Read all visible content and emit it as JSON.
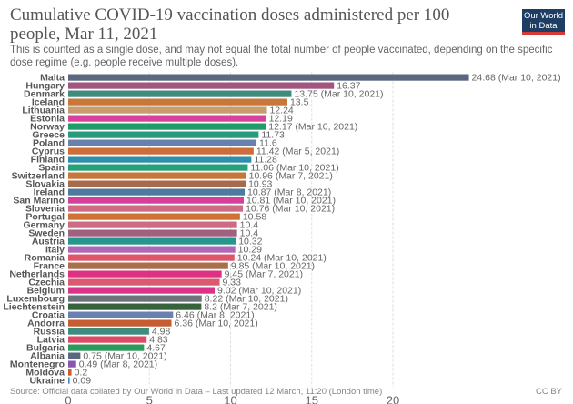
{
  "header": {
    "title": "Cumulative COVID-19 vaccination doses administered per 100 people, Mar 11, 2021",
    "subtitle": "This is counted as a single dose, and may not equal the total number of people vaccinated, depending on the specific dose regime (e.g. people receive multiple doses).",
    "logo_line1": "Our World",
    "logo_line2": "in Data"
  },
  "footer": {
    "source": "Source: Official data collated by Our World in Data – Last updated 12 March, 11:20 (London time)",
    "license": "CC BY"
  },
  "chart_data": {
    "type": "bar",
    "orientation": "horizontal",
    "title": "Cumulative COVID-19 vaccination doses administered per 100 people, Mar 11, 2021",
    "xlabel": "",
    "ylabel": "",
    "xlim": [
      0,
      25
    ],
    "xticks": [
      0,
      5,
      10,
      15,
      20
    ],
    "grid": true,
    "categories": [
      "Malta",
      "Hungary",
      "Denmark",
      "Iceland",
      "Lithuania",
      "Estonia",
      "Norway",
      "Greece",
      "Poland",
      "Cyprus",
      "Finland",
      "Spain",
      "Switzerland",
      "Slovakia",
      "Ireland",
      "San Marino",
      "Slovenia",
      "Portugal",
      "Germany",
      "Sweden",
      "Austria",
      "Italy",
      "Romania",
      "France",
      "Netherlands",
      "Czechia",
      "Belgium",
      "Luxembourg",
      "Liechtenstein",
      "Croatia",
      "Andorra",
      "Russia",
      "Latvia",
      "Bulgaria",
      "Albania",
      "Montenegro",
      "Moldova",
      "Ukraine"
    ],
    "values": [
      24.68,
      16.37,
      13.75,
      13.5,
      12.24,
      12.19,
      12.17,
      11.73,
      11.6,
      11.42,
      11.28,
      11.06,
      10.96,
      10.93,
      10.87,
      10.81,
      10.76,
      10.58,
      10.4,
      10.4,
      10.32,
      10.29,
      10.24,
      9.85,
      9.45,
      9.33,
      9.02,
      8.22,
      8.2,
      6.46,
      6.36,
      4.98,
      4.83,
      4.67,
      0.75,
      0.49,
      0.2,
      0.09
    ],
    "labels": [
      "24.68 (Mar 10, 2021)",
      "16.37",
      "13.75 (Mar 10, 2021)",
      "13.5",
      "12.24",
      "12.19",
      "12.17 (Mar 10, 2021)",
      "11.73",
      "11.6",
      "11.42 (Mar 5, 2021)",
      "11.28",
      "11.06 (Mar 10, 2021)",
      "10.96 (Mar 7, 2021)",
      "10.93",
      "10.87 (Mar 8, 2021)",
      "10.81 (Mar 10, 2021)",
      "10.76 (Mar 10, 2021)",
      "10.58",
      "10.4",
      "10.4",
      "10.32",
      "10.29",
      "10.24 (Mar 10, 2021)",
      "9.85 (Mar 10, 2021)",
      "9.45 (Mar 7, 2021)",
      "9.33",
      "9.02 (Mar 10, 2021)",
      "8.22 (Mar 10, 2021)",
      "8.2 (Mar 7, 2021)",
      "6.46 (Mar 8, 2021)",
      "6.36 (Mar 10, 2021)",
      "4.98",
      "4.83",
      "4.67",
      "0.75 (Mar 10, 2021)",
      "0.49 (Mar 8, 2021)",
      "0.2",
      "0.09"
    ],
    "colors": [
      "#5b6980",
      "#a2567f",
      "#3e8c7d",
      "#c8763a",
      "#c99c6e",
      "#d8429b",
      "#1f9c67",
      "#2a9a7c",
      "#6880ad",
      "#cc6d3a",
      "#2d8fac",
      "#27a178",
      "#c8763a",
      "#a86b4a",
      "#4e7aa0",
      "#d43f9b",
      "#cf6b82",
      "#ce7236",
      "#ce6b82",
      "#a0607f",
      "#27968d",
      "#ae68b7",
      "#dd5769",
      "#a96f4a",
      "#dd3283",
      "#dc5a70",
      "#d9338a",
      "#6d737d",
      "#36633b",
      "#6881b0",
      "#c65c32",
      "#3e8c7d",
      "#e04965",
      "#2b9a5b",
      "#5b6980",
      "#8a55b0",
      "#d05a32",
      "#4a87c0"
    ]
  }
}
